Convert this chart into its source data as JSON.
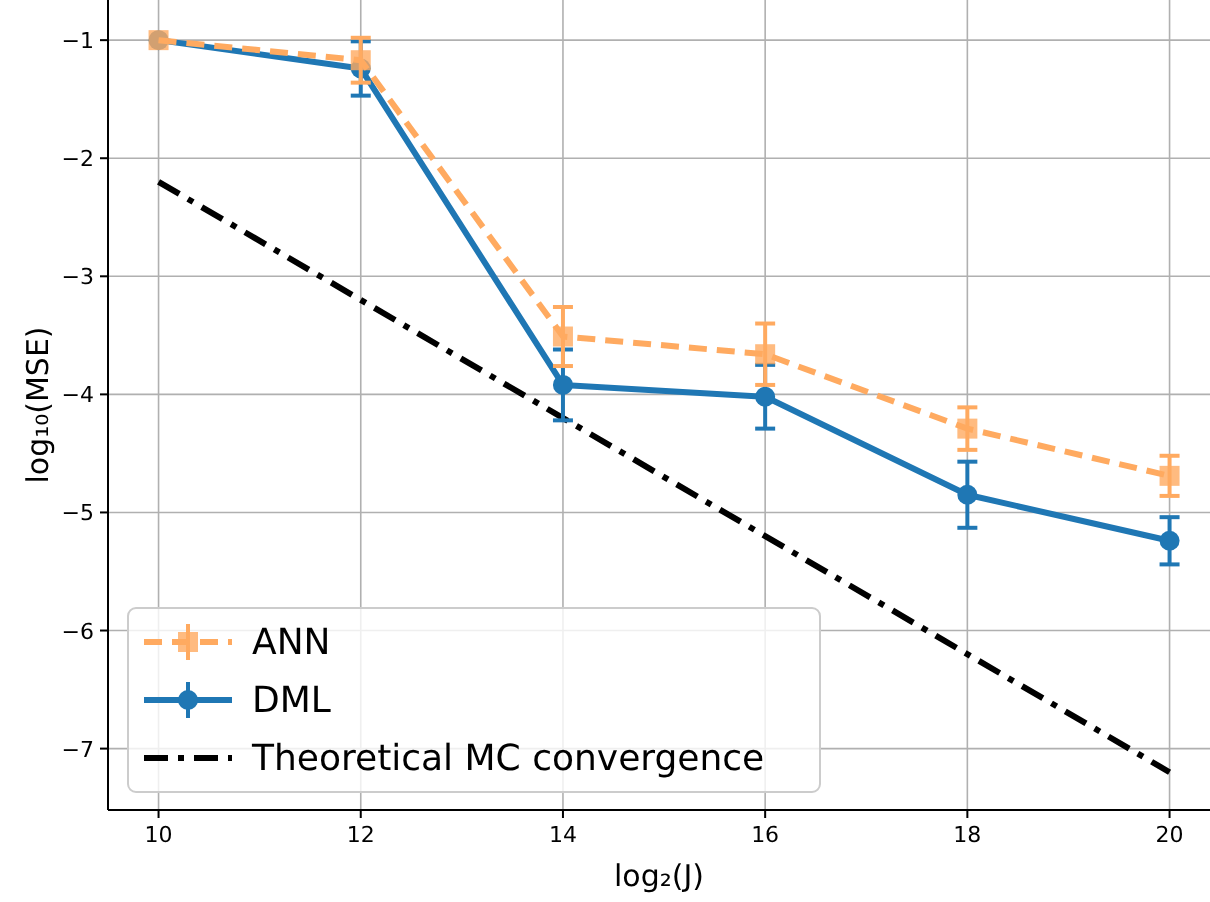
{
  "chart_data": {
    "type": "line",
    "xlabel": "log₂(J)",
    "ylabel": "log₁₀(MSE)",
    "x": [
      10,
      12,
      14,
      16,
      18,
      20
    ],
    "xlim": [
      9.5,
      20.4
    ],
    "ylim": [
      -7.52,
      -0.66
    ],
    "xticks": [
      10,
      12,
      14,
      16,
      18,
      20
    ],
    "yticks": [
      -1,
      -2,
      -3,
      -4,
      -5,
      -6,
      -7
    ],
    "grid": true,
    "legend": "bottom left",
    "series": [
      {
        "name": "ANN",
        "color": "#ffaa60",
        "values": [
          -1.0,
          -1.17,
          -3.51,
          -3.66,
          -4.29,
          -4.69
        ],
        "errors": [
          null,
          0.19,
          0.25,
          0.26,
          0.18,
          0.17
        ],
        "marker": "square",
        "line_style": "dashed"
      },
      {
        "name": "DML",
        "color": "#1f77b4",
        "values": [
          -1.0,
          -1.24,
          -3.92,
          -4.02,
          -4.85,
          -5.24
        ],
        "errors": [
          null,
          0.23,
          0.3,
          0.27,
          0.28,
          0.2
        ],
        "marker": "circle",
        "line_style": "solid"
      },
      {
        "name": "Theoretical MC convergence",
        "color": "#000000",
        "x": [
          10,
          20
        ],
        "values": [
          -2.2,
          -7.2
        ],
        "marker": "none",
        "line_style": "dashdot"
      }
    ]
  }
}
